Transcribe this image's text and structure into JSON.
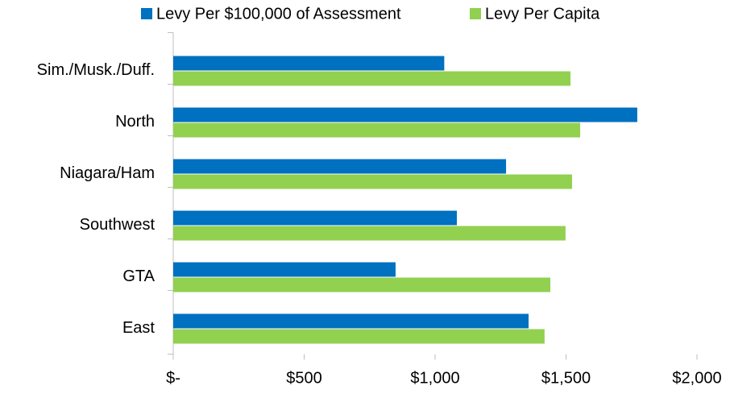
{
  "chart_data": {
    "type": "bar",
    "orientation": "horizontal",
    "categories": [
      "Sim./Musk./Duff.",
      "North",
      "Niagara/Ham",
      "Southwest",
      "GTA",
      "East"
    ],
    "series": [
      {
        "name": "Levy Per $100,000 of Assessment",
        "color": "#0070c0",
        "values": [
          1035,
          1772,
          1271,
          1083,
          849,
          1357
        ]
      },
      {
        "name": "Levy Per Capita",
        "color": "#92d050",
        "values": [
          1517,
          1554,
          1523,
          1498,
          1440,
          1418
        ]
      }
    ],
    "xlim": [
      0,
      2000
    ],
    "xticks": [
      {
        "value": 0,
        "label": "$-"
      },
      {
        "value": 500,
        "label": "$500"
      },
      {
        "value": 1000,
        "label": "$1,000"
      },
      {
        "value": 1500,
        "label": "$1,500"
      },
      {
        "value": 2000,
        "label": "$2,000"
      }
    ],
    "legend": "top"
  }
}
